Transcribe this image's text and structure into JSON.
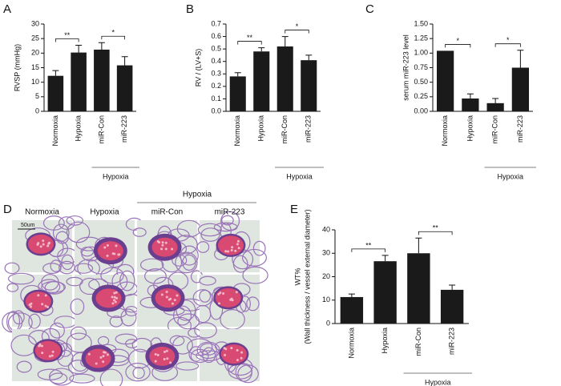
{
  "chart_data": [
    {
      "type": "bar",
      "panel": "A",
      "ylabel": "RVSP (mmHg)",
      "categories": [
        "Normoxia",
        "Hypoxia",
        "miR-Con",
        "miR-223"
      ],
      "values": [
        12.2,
        20.2,
        21.2,
        15.8
      ],
      "errors": [
        1.8,
        2.5,
        2.4,
        3.0
      ],
      "color": "#1a1a1a",
      "ylim": [
        0,
        30
      ],
      "yticks": [
        0,
        5,
        10,
        15,
        20,
        25,
        30
      ],
      "annotations": [
        "**",
        "*"
      ],
      "group_label": "Hypoxia"
    },
    {
      "type": "bar",
      "panel": "B",
      "ylabel": "RV / (LV+S)",
      "categories": [
        "Normoxia",
        "Hypoxia",
        "miR-Con",
        "miR-223"
      ],
      "values": [
        0.28,
        0.48,
        0.52,
        0.41
      ],
      "errors": [
        0.03,
        0.03,
        0.08,
        0.04
      ],
      "color": "#1a1a1a",
      "ylim": [
        0,
        0.7
      ],
      "yticks": [
        {
          "value": 0,
          "label": "0.0"
        },
        0.1,
        0.2,
        0.3,
        0.4,
        0.5,
        0.6,
        0.7
      ],
      "annotations": [
        "**",
        "*"
      ],
      "group_label": "Hypoxia"
    },
    {
      "type": "bar",
      "panel": "C",
      "ylabel": "serum miR-223 level",
      "categories": [
        "Normoxia",
        "Hypoxia",
        "miR-Con",
        "miR-223"
      ],
      "values": [
        1.04,
        0.22,
        0.14,
        0.75
      ],
      "errors": [
        null,
        0.08,
        0.08,
        0.3
      ],
      "color": "#1a1a1a",
      "ylim": [
        0,
        1.5
      ],
      "yticks": [
        {
          "value": 0,
          "label": "0.00"
        },
        0.25,
        {
          "value": 0.5,
          "label": "0.50"
        },
        0.75,
        {
          "value": 1,
          "label": "1.00"
        },
        1.25,
        {
          "value": 1.5,
          "label": "1.50"
        }
      ],
      "annotations": [
        "*",
        "*"
      ],
      "group_label": "Hypoxia"
    },
    {
      "type": "bar",
      "panel": "E",
      "ylabel": [
        "WT%",
        "(Wall thickness / vessel external diameter)"
      ],
      "categories": [
        "Normoxia",
        "Hypoxia",
        "miR-Con",
        "miR-223"
      ],
      "values": [
        11.3,
        26.6,
        30.0,
        14.4
      ],
      "errors": [
        1.3,
        2.5,
        6.5,
        2.0
      ],
      "color": "#1a1a1a",
      "ylim": [
        0,
        40
      ],
      "yticks": [
        0,
        10,
        20,
        30,
        40
      ],
      "annotations": [
        "**",
        "**"
      ],
      "group_label": "Hypoxia"
    }
  ],
  "panel_d": {
    "label": "D",
    "group_label": "Hypoxia",
    "columns": [
      "Normoxia",
      "Hypoxia",
      "miR-Con",
      "miR-223"
    ],
    "scale_bar": "50um"
  }
}
